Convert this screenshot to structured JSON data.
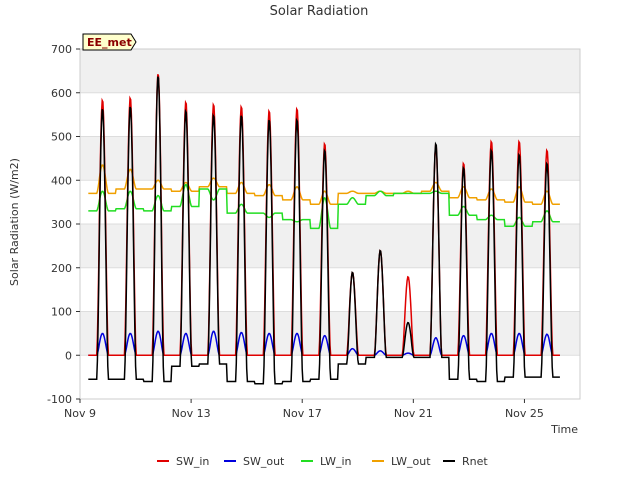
{
  "chart_data": {
    "type": "line",
    "title": "Solar Radiation",
    "xlabel": "Time",
    "ylabel": "Solar Radiation (W/m2)",
    "site_badge": "EE_met",
    "xlim": [
      0,
      18
    ],
    "ylim": [
      -100,
      700
    ],
    "x_ticks": [
      {
        "x": 0,
        "label": "Nov 9"
      },
      {
        "x": 4,
        "label": "Nov 13"
      },
      {
        "x": 8,
        "label": "Nov 17"
      },
      {
        "x": 12,
        "label": "Nov 21"
      },
      {
        "x": 16,
        "label": "Nov 25"
      }
    ],
    "y_ticks": [
      -100,
      0,
      100,
      200,
      300,
      400,
      500,
      600,
      700
    ],
    "grid": true,
    "legend_position": "bottom",
    "peaks": {
      "day_start": [
        0,
        1,
        2,
        3,
        4,
        5,
        6,
        7,
        8,
        9,
        10,
        11,
        12,
        13,
        14,
        15,
        16
      ],
      "SW_in": [
        585,
        590,
        645,
        580,
        575,
        570,
        560,
        565,
        485,
        190,
        240,
        180,
        480,
        440,
        490,
        490,
        470
      ],
      "SW_out": [
        50,
        50,
        55,
        50,
        55,
        52,
        50,
        50,
        45,
        15,
        10,
        5,
        40,
        45,
        50,
        50,
        48
      ],
      "LW_in": [
        375,
        375,
        365,
        390,
        355,
        345,
        315,
        305,
        360,
        360,
        375,
        370,
        375,
        340,
        320,
        315,
        330
      ],
      "LW_out": [
        435,
        425,
        400,
        395,
        405,
        395,
        390,
        385,
        375,
        375,
        375,
        375,
        395,
        385,
        380,
        385,
        375
      ],
      "Rnet": [
        565,
        570,
        640,
        560,
        550,
        550,
        540,
        540,
        470,
        190,
        240,
        75,
        485,
        430,
        470,
        460,
        440
      ]
    },
    "night": {
      "SW_in": 0,
      "SW_out": 0,
      "LW_in": [
        330,
        335,
        330,
        340,
        380,
        325,
        325,
        310,
        290,
        345,
        365,
        370,
        370,
        320,
        310,
        295,
        305
      ],
      "LW_out": [
        370,
        380,
        380,
        375,
        385,
        370,
        365,
        355,
        345,
        370,
        370,
        370,
        375,
        360,
        355,
        350,
        345
      ],
      "Rnet": [
        -55,
        -55,
        -60,
        -25,
        -20,
        -60,
        -65,
        -60,
        -55,
        -20,
        -5,
        -5,
        -5,
        -55,
        -60,
        -50,
        -50
      ]
    },
    "series": [
      {
        "name": "SW_in",
        "color": "#e00000"
      },
      {
        "name": "SW_out",
        "color": "#0000dd"
      },
      {
        "name": "LW_in",
        "color": "#22dd22"
      },
      {
        "name": "LW_out",
        "color": "#f0a000"
      },
      {
        "name": "Rnet",
        "color": "#000000"
      }
    ]
  }
}
